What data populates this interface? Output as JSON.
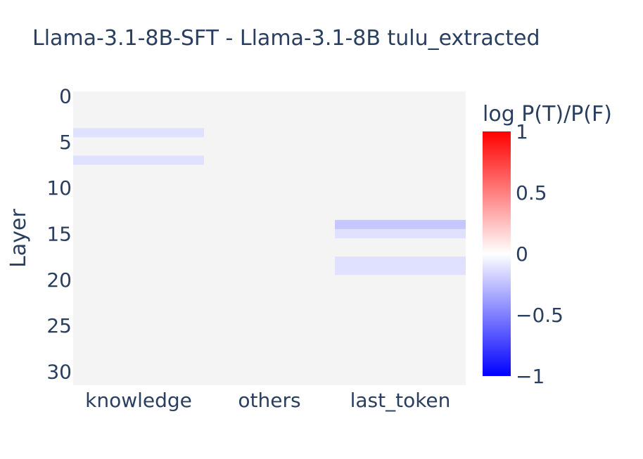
{
  "chart_data": {
    "type": "heatmap",
    "title": "Llama-3.1-8B-SFT - Llama-3.1-8B  tulu_extracted",
    "xlabel": "",
    "ylabel": "Layer",
    "categories": [
      "knowledge",
      "others",
      "last_token"
    ],
    "y_range": [
      0,
      31
    ],
    "y_reversed": true,
    "y_ticks": [
      0,
      5,
      10,
      15,
      20,
      25,
      30
    ],
    "colorbar": {
      "title": "log P(T)/P(F)",
      "zmin": -1,
      "zmax": 1,
      "ticks": [
        {
          "value": 1,
          "label": "1"
        },
        {
          "value": 0.5,
          "label": "0.5"
        },
        {
          "value": 0,
          "label": "0"
        },
        {
          "value": -0.5,
          "label": "−0.5"
        },
        {
          "value": -1,
          "label": "−1"
        }
      ],
      "colors": [
        "#0000ff",
        "#ffffff",
        "#ff0000"
      ]
    },
    "default_value": 0,
    "cells": [
      {
        "category": "knowledge",
        "layer": 4,
        "value": -0.12
      },
      {
        "category": "knowledge",
        "layer": 7,
        "value": -0.12
      },
      {
        "category": "last_token",
        "layer": 14,
        "value": -0.22
      },
      {
        "category": "last_token",
        "layer": 15,
        "value": -0.12
      },
      {
        "category": "last_token",
        "layer": 18,
        "value": -0.12
      },
      {
        "category": "last_token",
        "layer": 19,
        "value": -0.12
      }
    ]
  }
}
